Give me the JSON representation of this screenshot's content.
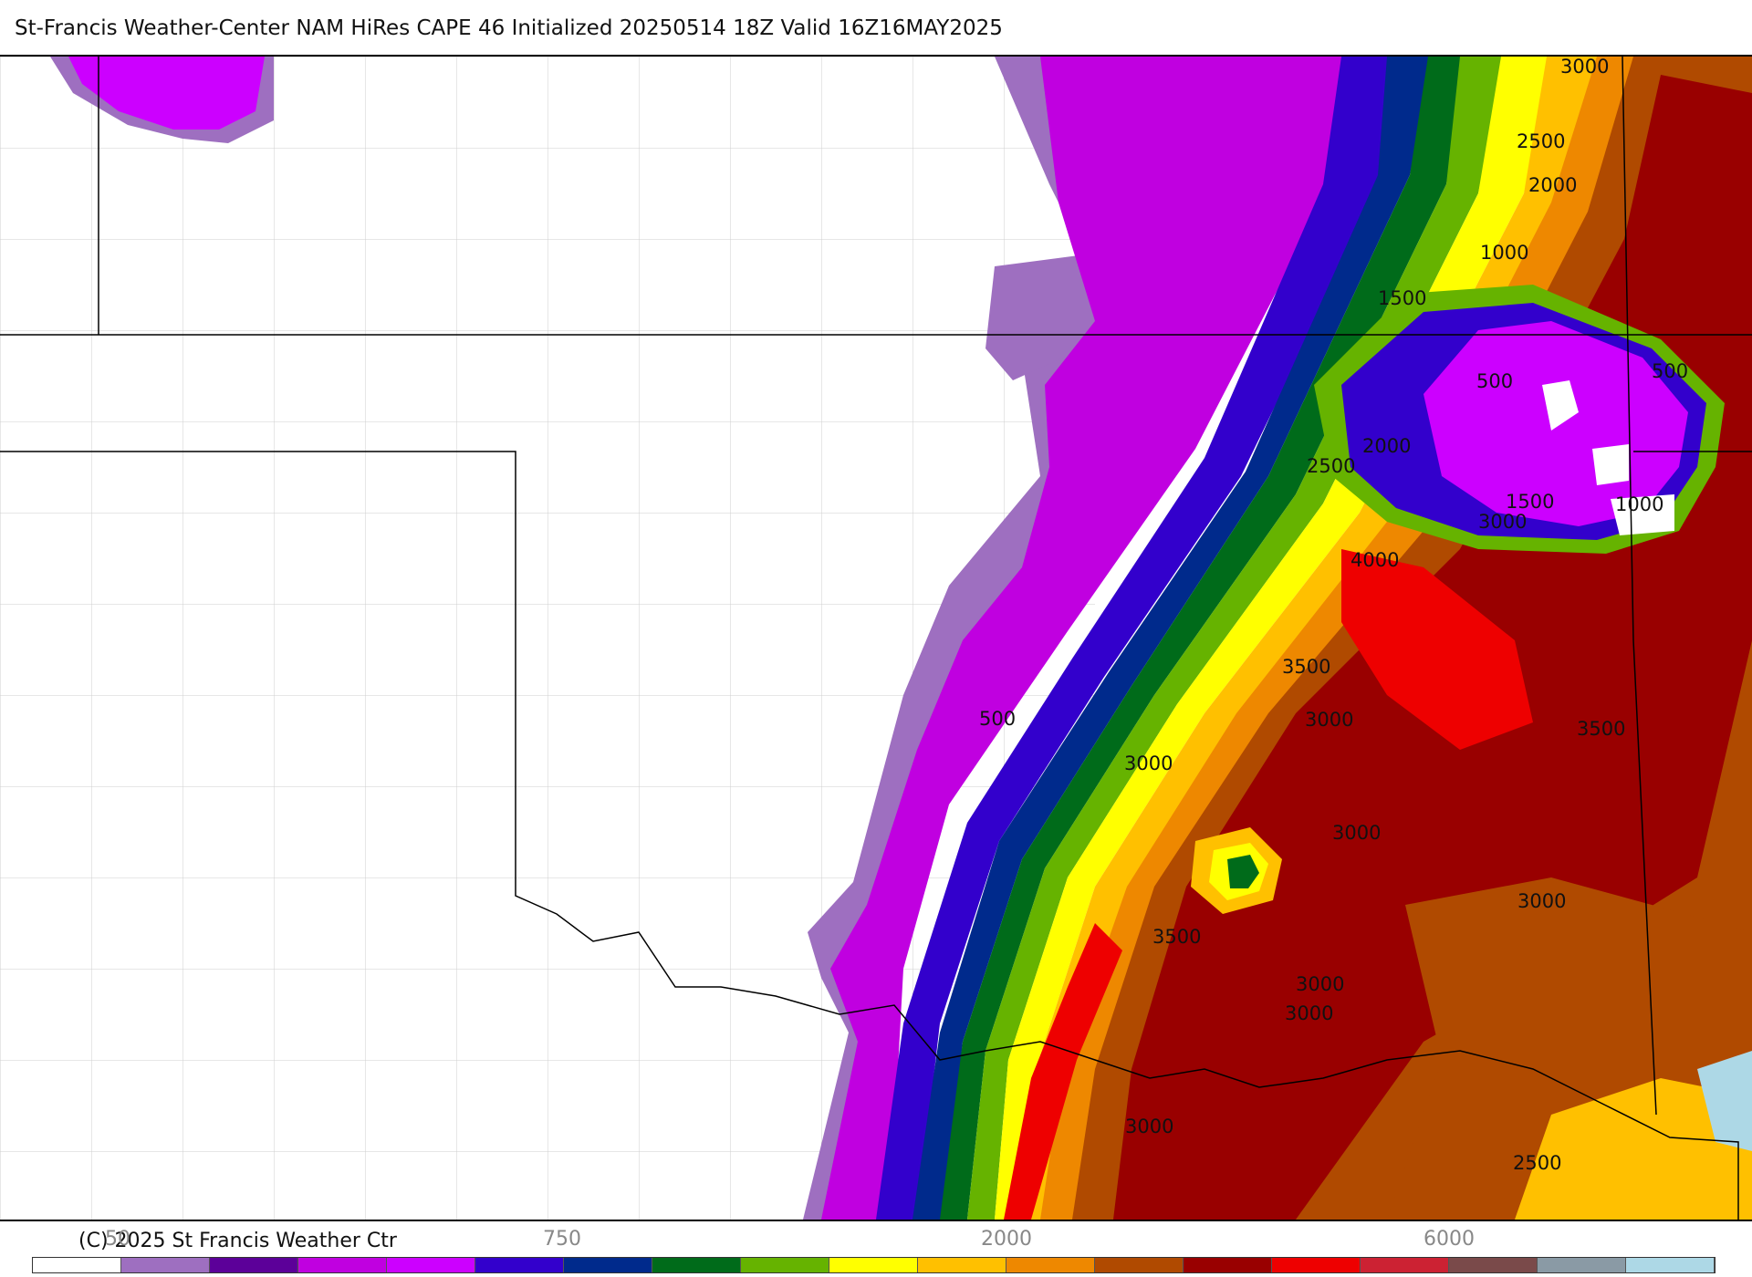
{
  "header": {
    "title": "St-Francis Weather-Center NAM HiRes CAPE  46 Initialized 20250514 18Z Valid 16Z16MAY2025"
  },
  "footer": {
    "copyright": "(C) 2025 St Francis Weather Ctr",
    "colorbar_ticks": [
      "50",
      "750",
      "2000",
      "6000"
    ],
    "colorbar_colors": [
      "#ffffff",
      "#9e6fc0",
      "#5c0099",
      "#c000e0",
      "#cc00ff",
      "#3300cc",
      "#002a8c",
      "#006b1a",
      "#66b300",
      "#ffff00",
      "#ffc000",
      "#ee8800",
      "#b04a00",
      "#990000",
      "#ee0000",
      "#cc2233",
      "#7a4a4a",
      "#8a9aa5",
      "#add8e6"
    ]
  },
  "map": {
    "contour_labels": [
      "3000",
      "2500",
      "2000",
      "1000",
      "1500",
      "500",
      "500",
      "2000",
      "2500",
      "1500",
      "1000",
      "3000",
      "4000",
      "3500",
      "3000",
      "500",
      "3500",
      "3000",
      "3000",
      "3000",
      "3500",
      "3000",
      "3000",
      "3000",
      "2500"
    ]
  }
}
